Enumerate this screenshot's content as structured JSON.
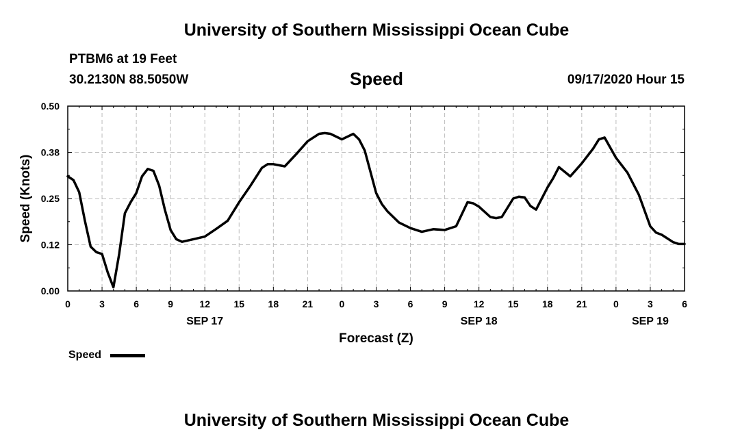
{
  "header": {
    "title": "University of Southern Mississippi Ocean Cube",
    "station": "PTBM6 at 19 Feet",
    "location": "30.2130N 88.5050W",
    "variable": "Speed",
    "timestamp": "09/17/2020 Hour 15"
  },
  "footer": {
    "title": "University of Southern Mississippi Ocean Cube"
  },
  "legend": {
    "label": "Speed"
  },
  "colors": {
    "line": "#000000",
    "grid": "#bbbbbb"
  },
  "chart_data": {
    "type": "line",
    "title": "Speed",
    "xlabel": "Forecast (Z)",
    "ylabel": "Speed (Knots)",
    "xlim": [
      0,
      54
    ],
    "ylim": [
      0,
      0.5
    ],
    "grid": true,
    "legend_position": "bottom-left",
    "yticks": [
      {
        "value": 0.0,
        "label": "0.00"
      },
      {
        "value": 0.125,
        "label": "0.12"
      },
      {
        "value": 0.25,
        "label": "0.25"
      },
      {
        "value": 0.375,
        "label": "0.38"
      },
      {
        "value": 0.5,
        "label": "0.50"
      }
    ],
    "xticks": [
      {
        "value": 0,
        "label": "0"
      },
      {
        "value": 3,
        "label": "3"
      },
      {
        "value": 6,
        "label": "6"
      },
      {
        "value": 9,
        "label": "9"
      },
      {
        "value": 12,
        "label": "12"
      },
      {
        "value": 15,
        "label": "15"
      },
      {
        "value": 18,
        "label": "18"
      },
      {
        "value": 21,
        "label": "21"
      },
      {
        "value": 24,
        "label": "0"
      },
      {
        "value": 27,
        "label": "3"
      },
      {
        "value": 30,
        "label": "6"
      },
      {
        "value": 33,
        "label": "9"
      },
      {
        "value": 36,
        "label": "12"
      },
      {
        "value": 39,
        "label": "15"
      },
      {
        "value": 42,
        "label": "18"
      },
      {
        "value": 45,
        "label": "21"
      },
      {
        "value": 48,
        "label": "0"
      },
      {
        "value": 51,
        "label": "3"
      },
      {
        "value": 54,
        "label": "6"
      }
    ],
    "date_labels": [
      {
        "value": 12,
        "label": "SEP 17"
      },
      {
        "value": 36,
        "label": "SEP 18"
      },
      {
        "value": 51,
        "label": "SEP 19"
      }
    ],
    "series": [
      {
        "name": "Speed",
        "x": [
          0,
          0.5,
          1,
          1.5,
          2,
          2.5,
          3,
          3.5,
          4,
          4.5,
          5,
          5.5,
          6,
          6.5,
          7,
          7.5,
          8,
          8.5,
          9,
          9.5,
          10,
          11,
          12,
          13,
          14,
          15,
          16,
          17,
          17.5,
          18,
          18.5,
          19,
          20,
          21,
          22,
          22.5,
          23,
          24,
          25,
          25.5,
          26,
          27,
          27.5,
          28,
          29,
          30,
          31,
          32,
          33,
          34,
          35,
          35.5,
          36,
          37,
          37.5,
          38,
          39,
          39.5,
          40,
          40.5,
          41,
          42,
          42.5,
          43,
          44,
          45,
          46,
          46.5,
          47,
          48,
          49,
          50,
          51,
          51.5,
          52,
          53,
          53.5,
          54
        ],
        "y": [
          0.31,
          0.3,
          0.267,
          0.19,
          0.12,
          0.105,
          0.1,
          0.05,
          0.01,
          0.1,
          0.21,
          0.24,
          0.265,
          0.31,
          0.33,
          0.325,
          0.285,
          0.22,
          0.165,
          0.14,
          0.133,
          0.14,
          0.147,
          0.168,
          0.19,
          0.24,
          0.285,
          0.333,
          0.343,
          0.343,
          0.34,
          0.337,
          0.37,
          0.405,
          0.425,
          0.427,
          0.425,
          0.41,
          0.425,
          0.41,
          0.38,
          0.265,
          0.235,
          0.215,
          0.185,
          0.17,
          0.16,
          0.167,
          0.165,
          0.175,
          0.24,
          0.237,
          0.228,
          0.2,
          0.197,
          0.2,
          0.25,
          0.255,
          0.253,
          0.23,
          0.22,
          0.28,
          0.305,
          0.335,
          0.31,
          0.345,
          0.385,
          0.41,
          0.415,
          0.36,
          0.32,
          0.26,
          0.175,
          0.158,
          0.152,
          0.132,
          0.127,
          0.127
        ]
      }
    ]
  }
}
